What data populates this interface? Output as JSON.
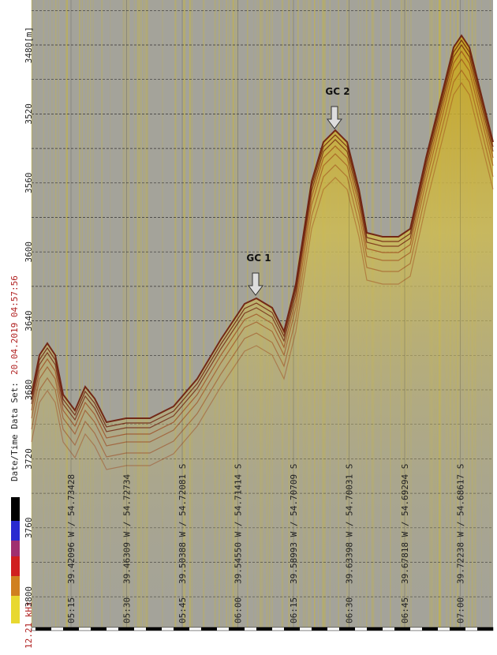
{
  "depth_axis": {
    "labels": [
      "3480[m]",
      "3520",
      "3560",
      "3600",
      "3640",
      "3680",
      "3720",
      "3760",
      "3800"
    ]
  },
  "dataset_label": {
    "prefix": "Date/Time Data Set:",
    "datetime": "20.04.2019 04:57:56"
  },
  "frequency": "12.21 kHz",
  "annotations": [
    "GC 1",
    "GC 2"
  ],
  "track": [
    {
      "time": "05:15",
      "position": "39.42096 W / 54.73428"
    },
    {
      "time": "05:30",
      "position": "39.46309 W / 54.72734"
    },
    {
      "time": "05:45",
      "position": "39.50388 W / 54.72081 S"
    },
    {
      "time": "06:00",
      "position": "39.54550 W / 54.71414 S"
    },
    {
      "time": "06:15",
      "position": "39.58993 W / 54.70709 S"
    },
    {
      "time": "06:30",
      "position": "39.63398 W / 54.70031 S"
    },
    {
      "time": "06:45",
      "position": "39.67818 W / 54.69294 S"
    },
    {
      "time": "07:00",
      "position": "39.72238 W / 54.68617 S"
    }
  ]
}
